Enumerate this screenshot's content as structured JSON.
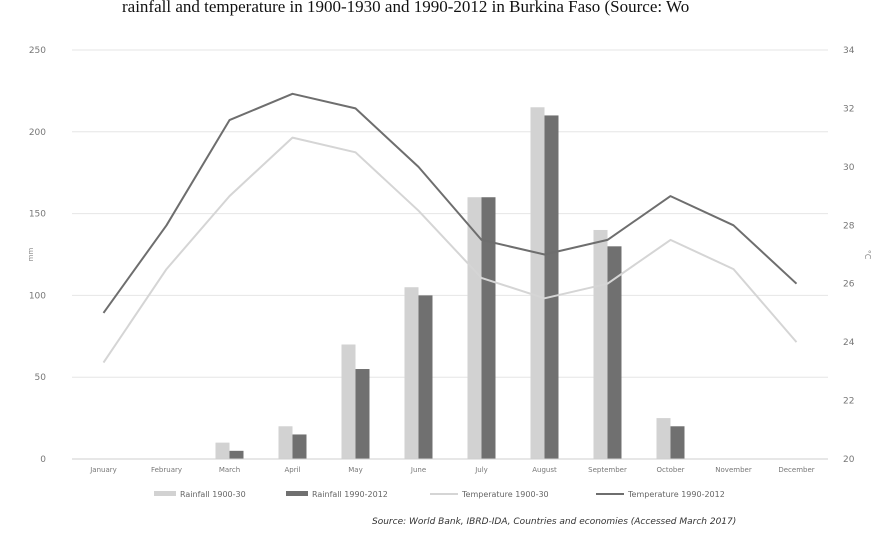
{
  "caption": {
    "text": "rainfall and temperature in 1900-1930 and 1990-2012 in Burkina Faso (Source: Wo"
  },
  "source": "Source: World Bank, IBRD-IDA, Countries and economies (Accessed March 2017)",
  "chart_data": {
    "type": "bar",
    "categories": [
      "January",
      "February",
      "March",
      "April",
      "May",
      "June",
      "July",
      "August",
      "September",
      "October",
      "November",
      "December"
    ],
    "ylabel_left": "mm",
    "ylabel_right": "°C",
    "ylim_left": [
      0,
      250
    ],
    "yticks_left": [
      "0",
      "50",
      "100",
      "150",
      "200",
      "250"
    ],
    "ylim_right": [
      20,
      34
    ],
    "yticks_right": [
      "20",
      "22",
      "24",
      "26",
      "28",
      "30",
      "32",
      "34"
    ],
    "grid": true,
    "legend_position": "bottom",
    "series": [
      {
        "name": "Rainfall 1900-30",
        "type": "bar",
        "axis": "left",
        "color": "#d2d2d2",
        "values": [
          0,
          0,
          10,
          20,
          70,
          105,
          160,
          215,
          140,
          25,
          0,
          0
        ]
      },
      {
        "name": "Rainfall 1990-2012",
        "type": "bar",
        "axis": "left",
        "color": "#707070",
        "values": [
          0,
          0,
          5,
          15,
          55,
          100,
          160,
          210,
          130,
          20,
          0,
          0
        ]
      },
      {
        "name": "Temperature 1900-30",
        "type": "line",
        "axis": "right",
        "color": "#d5d5d5",
        "values": [
          23.3,
          26.5,
          29.0,
          31.0,
          30.5,
          28.5,
          26.2,
          25.5,
          26.0,
          27.5,
          26.5,
          24.0
        ]
      },
      {
        "name": "Temperature 1990-2012",
        "type": "line",
        "axis": "right",
        "color": "#6e6e6e",
        "values": [
          25.0,
          28.0,
          31.6,
          32.5,
          32.0,
          30.0,
          27.5,
          27.0,
          27.5,
          29.0,
          28.0,
          26.0
        ]
      }
    ]
  }
}
